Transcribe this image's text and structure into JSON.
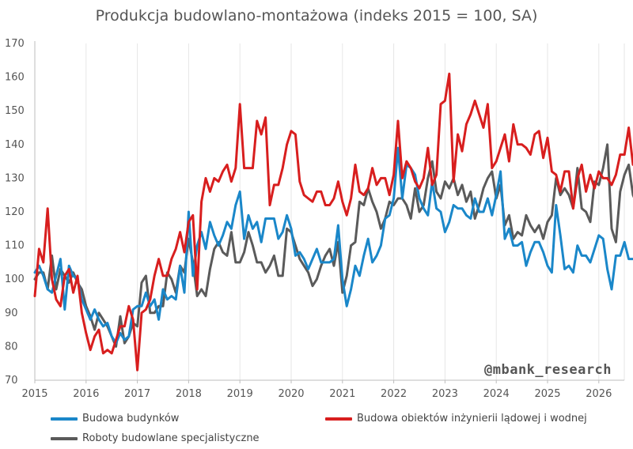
{
  "chart_data": {
    "type": "line",
    "title": "Produkcja budowlano-montażowa (indeks 2015 = 100, SA)",
    "xlabel": "",
    "ylabel": "",
    "ylim": [
      70,
      170
    ],
    "yticks": [
      70,
      80,
      90,
      100,
      110,
      120,
      130,
      140,
      150,
      160,
      170
    ],
    "xticks": [
      "2015",
      "2016",
      "2017",
      "2018",
      "2019",
      "2020",
      "2021",
      "2022",
      "2023",
      "2024",
      "2025",
      "2026"
    ],
    "x_start": "2015-01",
    "x_frequency": "monthly",
    "grid": "vertical",
    "legend_position": "bottom",
    "series": [
      {
        "name": "Budowa budynków",
        "color": "#1a87c9",
        "values": [
          102,
          104,
          101,
          97,
          96,
          101,
          106,
          91,
          104,
          101,
          100,
          94,
          91,
          88,
          91,
          88,
          86,
          87,
          83,
          81,
          84,
          82,
          83,
          91,
          92,
          92,
          96,
          92,
          94,
          88,
          97,
          94,
          95,
          94,
          104,
          96,
          120,
          101,
          110,
          114,
          109,
          117,
          113,
          110,
          113,
          117,
          115,
          122,
          126,
          112,
          119,
          115,
          117,
          111,
          118,
          118,
          118,
          112,
          114,
          119,
          115,
          107,
          108,
          106,
          103,
          106,
          109,
          105,
          105,
          105,
          106,
          116,
          100,
          92,
          97,
          104,
          101,
          107,
          112,
          105,
          107,
          110,
          118,
          119,
          124,
          139,
          124,
          134,
          133,
          131,
          124,
          121,
          119,
          129,
          121,
          120,
          114,
          117,
          122,
          121,
          121,
          119,
          118,
          124,
          120,
          120,
          124,
          119,
          125,
          132,
          112,
          115,
          110,
          110,
          111,
          104,
          108,
          111,
          111,
          108,
          104,
          102,
          122,
          113,
          103,
          104,
          102,
          110,
          107,
          107,
          105,
          109,
          113,
          112,
          103,
          97,
          107,
          107,
          111,
          106,
          106
        ]
      },
      {
        "name": "Budowa obiektów inżynierii lądowej i wodnej",
        "color": "#d81e1e",
        "values": [
          95,
          109,
          105,
          121,
          100,
          94,
          92,
          101,
          103,
          96,
          101,
          90,
          84,
          79,
          83,
          85,
          78,
          79,
          78,
          82,
          86,
          86,
          92,
          88,
          73,
          90,
          91,
          94,
          101,
          106,
          101,
          101,
          106,
          109,
          114,
          108,
          117,
          119,
          97,
          123,
          130,
          126,
          130,
          129,
          132,
          134,
          129,
          133,
          152,
          133,
          133,
          133,
          147,
          143,
          148,
          122,
          128,
          128,
          133,
          140,
          144,
          143,
          129,
          125,
          124,
          123,
          126,
          126,
          122,
          122,
          124,
          129,
          123,
          119,
          124,
          134,
          126,
          125,
          127,
          133,
          128,
          130,
          130,
          125,
          131,
          147,
          130,
          135,
          133,
          129,
          127,
          130,
          139,
          128,
          131,
          152,
          153,
          161,
          129,
          143,
          138,
          146,
          149,
          153,
          149,
          145,
          152,
          133,
          135,
          139,
          143,
          135,
          146,
          140,
          140,
          139,
          137,
          143,
          144,
          136,
          142,
          132,
          131,
          126,
          132,
          132,
          121,
          130,
          134,
          126,
          131,
          127,
          132,
          130,
          130,
          128,
          131,
          137,
          137,
          145,
          134
        ]
      },
      {
        "name": "Roboty budowlane specjalistyczne",
        "color": "#5a5a5a",
        "values": [
          100,
          102,
          102,
          97,
          107,
          97,
          103,
          101,
          99,
          102,
          99,
          97,
          92,
          89,
          85,
          90,
          88,
          86,
          83,
          80,
          89,
          81,
          83,
          87,
          86,
          99,
          101,
          90,
          90,
          92,
          92,
          102,
          100,
          96,
          104,
          102,
          112,
          105,
          95,
          97,
          95,
          103,
          109,
          111,
          108,
          107,
          114,
          105,
          105,
          108,
          114,
          110,
          105,
          105,
          102,
          104,
          107,
          101,
          101,
          115,
          114,
          110,
          106,
          104,
          102,
          98,
          100,
          104,
          107,
          109,
          104,
          111,
          96,
          101,
          110,
          111,
          123,
          122,
          127,
          123,
          120,
          115,
          118,
          123,
          122,
          124,
          124,
          122,
          118,
          127,
          120,
          122,
          130,
          135,
          126,
          124,
          129,
          127,
          130,
          125,
          128,
          123,
          126,
          118,
          122,
          127,
          130,
          132,
          124,
          128,
          116,
          119,
          112,
          114,
          113,
          119,
          116,
          114,
          116,
          112,
          117,
          119,
          130,
          125,
          127,
          125,
          121,
          133,
          121,
          120,
          117,
          129,
          128,
          133,
          140,
          115,
          111,
          126,
          131,
          134,
          125,
          122
        ]
      }
    ]
  },
  "watermark": "@mbank_research"
}
